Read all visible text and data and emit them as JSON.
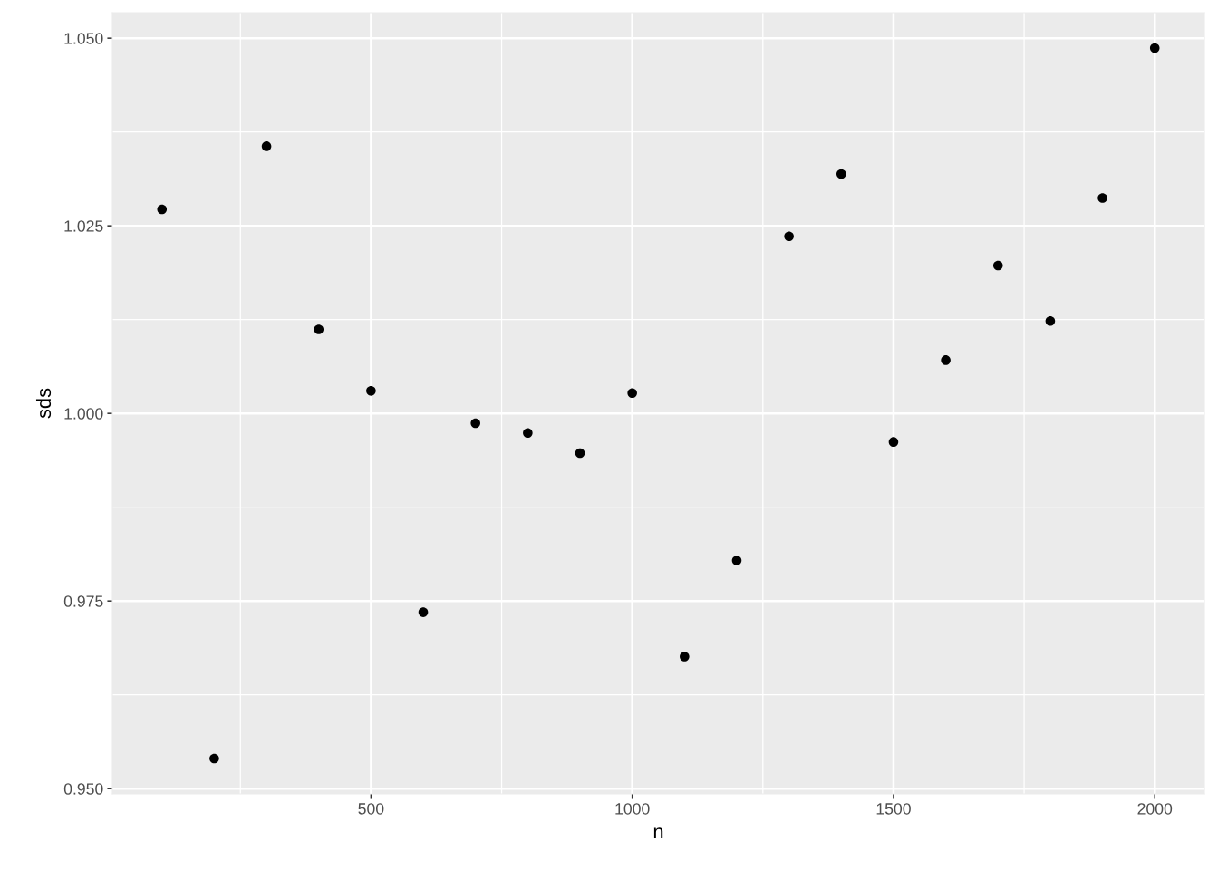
{
  "chart_data": {
    "type": "scatter",
    "xlabel": "n",
    "ylabel": "sds",
    "x": [
      100,
      200,
      300,
      400,
      500,
      600,
      700,
      800,
      900,
      1000,
      1100,
      1200,
      1300,
      1400,
      1500,
      1600,
      1700,
      1800,
      1900,
      2000
    ],
    "series": [
      {
        "color": "#000000",
        "values": [
          1.0272,
          0.954,
          1.0356,
          1.0112,
          1.003,
          0.9735,
          0.9987,
          0.9974,
          0.9947,
          1.0027,
          0.9676,
          0.9804,
          1.0236,
          1.0319,
          0.9962,
          1.0071,
          1.0197,
          1.0123,
          1.0287,
          1.0487
        ]
      }
    ],
    "xlim": [
      5,
      2095
    ],
    "ylim": [
      0.9493,
      1.0534
    ],
    "xticks": [
      500,
      1000,
      1500,
      2000
    ],
    "yticks": [
      {
        "value": 0.95,
        "label": "0.950"
      },
      {
        "value": 0.975,
        "label": "0.975"
      },
      {
        "value": 1.0,
        "label": "1.000"
      },
      {
        "value": 1.025,
        "label": "1.025"
      },
      {
        "value": 1.05,
        "label": "1.050"
      }
    ],
    "grid": true,
    "marker": "circle"
  }
}
